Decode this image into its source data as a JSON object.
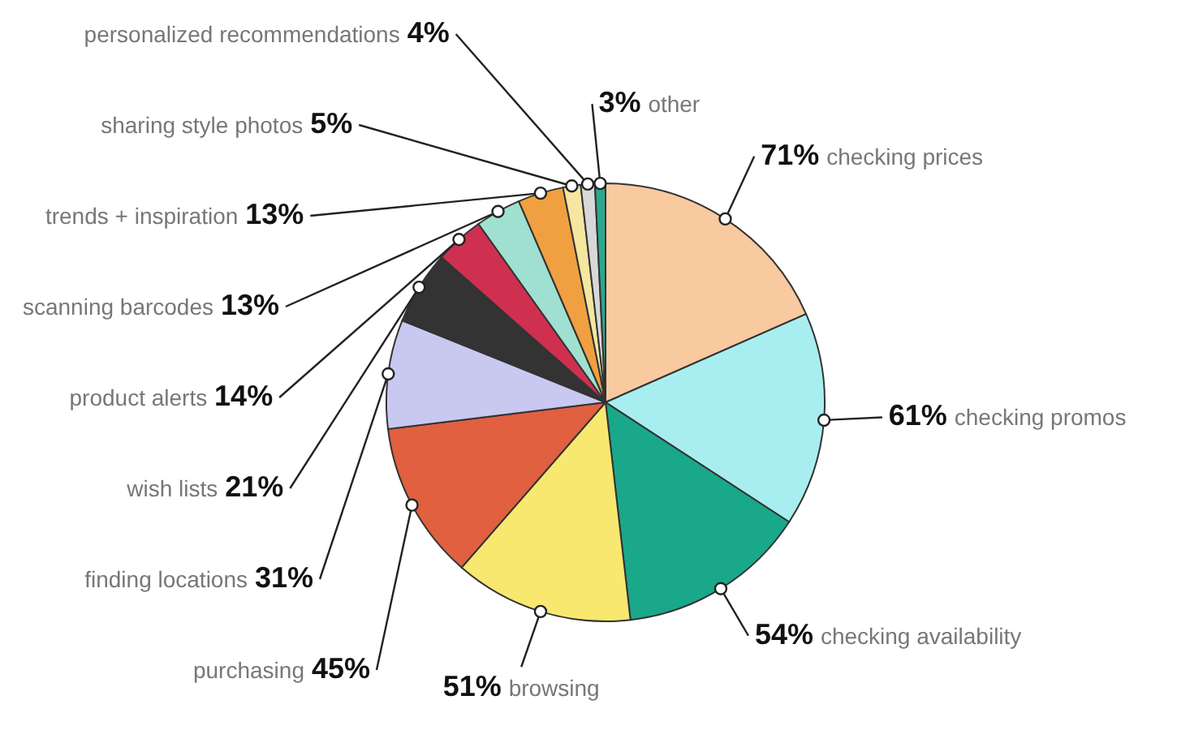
{
  "chart_data": {
    "type": "pie",
    "categories": [
      "checking prices",
      "checking promos",
      "checking availability",
      "browsing",
      "purchasing",
      "finding locations",
      "wish lists",
      "product alerts",
      "scanning barcodes",
      "trends + inspiration",
      "sharing style photos",
      "personalized recommendations",
      "other"
    ],
    "values": [
      71,
      61,
      54,
      51,
      45,
      31,
      21,
      14,
      13,
      13,
      5,
      4,
      3
    ],
    "value_labels": [
      "71%",
      "61%",
      "54%",
      "51%",
      "45%",
      "31%",
      "21%",
      "14%",
      "13%",
      "13%",
      "5%",
      "4%",
      "3%"
    ],
    "colors": [
      "#f9c9a0",
      "#a8eef0",
      "#1aa88a",
      "#f8e870",
      "#e06040",
      "#c8c8f0",
      "#333333",
      "#d03050",
      "#a0e0d0",
      "#f0a040",
      "#f5e6a0",
      "#d8d8d8",
      "#2aa88e"
    ],
    "legend": false
  }
}
